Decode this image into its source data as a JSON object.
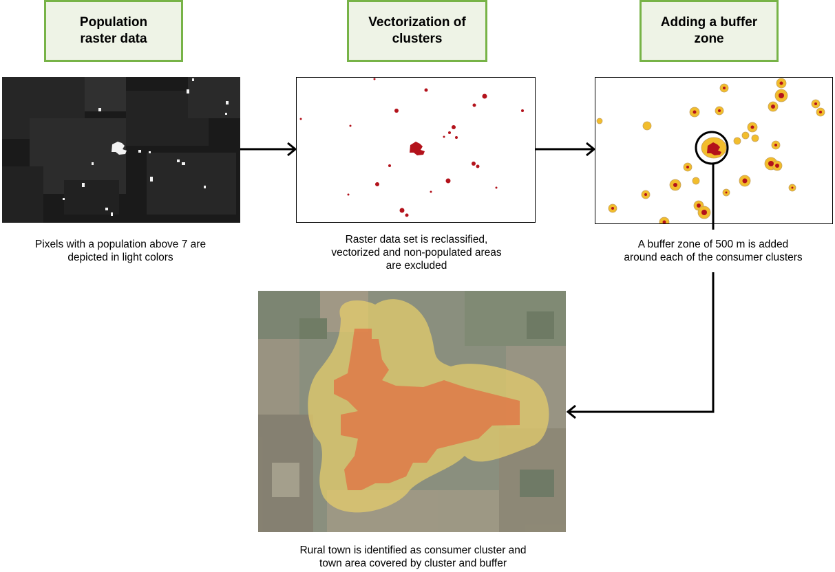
{
  "steps": [
    {
      "title": "Population\nraster data"
    },
    {
      "title": "Vectorization of\nclusters"
    },
    {
      "title": "Adding a buffer\nzone"
    }
  ],
  "captions": {
    "raster": "Pixels with a population above 7 are\ndepicted in light colors",
    "vector": "Raster data set is reclassified,\nvectorized and non-populated areas\nare excluded",
    "buffer": "A buffer zone of 500 m is added\naround each of the consumer clusters",
    "town": "Rural town is identified as consumer cluster and\ntown area covered by cluster and buffer"
  },
  "colors": {
    "box_border": "#77b347",
    "box_fill": "#eef3e6",
    "cluster": "#b3121b",
    "buffer": "#f2bd2c",
    "raster_bg": "#1c1c1c",
    "arrow": "#000000"
  }
}
